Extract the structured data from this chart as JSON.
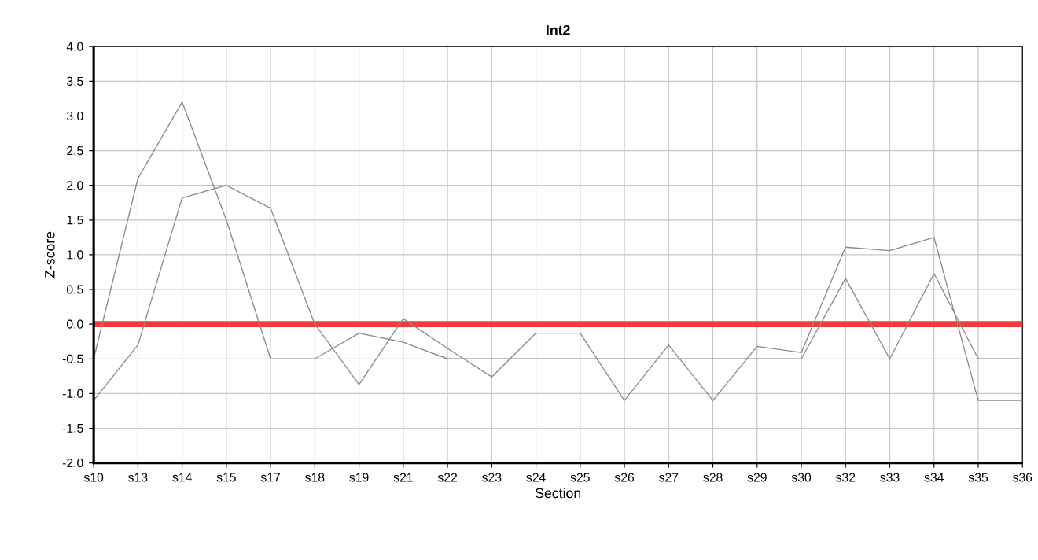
{
  "chart_data": {
    "type": "line",
    "title": "Int2",
    "xlabel": "Section",
    "ylabel": "Z-score",
    "categories": [
      "s10",
      "s13",
      "s14",
      "s15",
      "s17",
      "s18",
      "s19",
      "s21",
      "s22",
      "s23",
      "s24",
      "s25",
      "s26",
      "s27",
      "s28",
      "s29",
      "s30",
      "s32",
      "s33",
      "s34",
      "s35",
      "s36"
    ],
    "series": [
      {
        "color": "#8c8c8c",
        "values": [
          -0.5,
          2.1,
          3.2,
          1.5,
          -0.5,
          -0.5,
          -0.13,
          -0.26,
          -0.5,
          -0.5,
          -0.5,
          -0.5,
          -0.5,
          -0.5,
          -0.5,
          -0.5,
          -0.5,
          0.66,
          -0.5,
          0.73,
          -0.5,
          -0.5
        ]
      },
      {
        "color": "#8c8c8c",
        "values": [
          -1.1,
          -0.3,
          1.82,
          2.0,
          1.67,
          0.0,
          -0.87,
          0.08,
          -0.35,
          -0.76,
          -0.13,
          -0.13,
          -1.1,
          -0.3,
          -1.1,
          -0.32,
          -0.41,
          1.11,
          1.06,
          1.25,
          -1.1,
          -1.1
        ]
      }
    ],
    "ylim": [
      -2.0,
      4.0
    ],
    "yticks": [
      {
        "value": -2.0,
        "label": "-2.0"
      },
      {
        "value": -1.5,
        "label": "-1.5"
      },
      {
        "value": -1.0,
        "label": "-1.0"
      },
      {
        "value": -0.5,
        "label": "-0.5"
      },
      {
        "value": 0.0,
        "label": "0.0"
      },
      {
        "value": 0.5,
        "label": "0.5"
      },
      {
        "value": 1.0,
        "label": "1.0"
      },
      {
        "value": 1.5,
        "label": "1.5"
      },
      {
        "value": 2.0,
        "label": "2.0"
      },
      {
        "value": 2.5,
        "label": "2.5"
      },
      {
        "value": 3.0,
        "label": "3.0"
      },
      {
        "value": 3.5,
        "label": "3.5"
      },
      {
        "value": 4.0,
        "label": "4.0"
      }
    ],
    "ref_lines": [
      {
        "axis": "y",
        "value": 0.0,
        "color": "#f03c3c"
      }
    ],
    "grid": true,
    "marker": "none",
    "line_style": "solid"
  }
}
